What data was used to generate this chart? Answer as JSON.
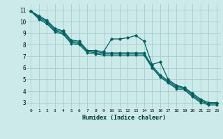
{
  "xlabel": "Humidex (Indice chaleur)",
  "bg_color": "#cceaea",
  "grid_color": "#aacccc",
  "line_color": "#006060",
  "xlim": [
    -0.5,
    23.5
  ],
  "ylim": [
    2.5,
    11.5
  ],
  "xticks": [
    0,
    1,
    2,
    3,
    4,
    5,
    6,
    7,
    8,
    9,
    10,
    11,
    12,
    13,
    14,
    15,
    16,
    17,
    18,
    19,
    20,
    21,
    22,
    23
  ],
  "yticks": [
    3,
    4,
    5,
    6,
    7,
    8,
    9,
    10,
    11
  ],
  "series_data": [
    [
      10.9,
      10.5,
      10.1,
      9.4,
      9.2,
      8.4,
      8.3,
      7.5,
      7.5,
      7.4,
      8.5,
      8.5,
      8.6,
      8.8,
      8.3,
      6.3,
      6.5,
      5.0,
      4.5,
      4.3,
      3.8,
      3.3,
      3.0,
      3.0
    ],
    [
      10.9,
      10.4,
      10.0,
      9.3,
      9.1,
      8.3,
      8.2,
      7.5,
      7.4,
      7.3,
      7.3,
      7.3,
      7.3,
      7.3,
      7.3,
      6.2,
      5.4,
      4.9,
      4.4,
      4.3,
      3.7,
      3.2,
      2.9,
      2.9
    ],
    [
      10.9,
      10.3,
      9.9,
      9.2,
      9.0,
      8.2,
      8.1,
      7.4,
      7.3,
      7.2,
      7.2,
      7.2,
      7.2,
      7.2,
      7.2,
      6.1,
      5.3,
      4.8,
      4.3,
      4.2,
      3.6,
      3.1,
      2.9,
      2.9
    ],
    [
      10.9,
      10.2,
      9.8,
      9.1,
      8.9,
      8.1,
      8.0,
      7.3,
      7.2,
      7.1,
      7.1,
      7.1,
      7.1,
      7.1,
      7.1,
      6.0,
      5.2,
      4.7,
      4.2,
      4.1,
      3.5,
      3.0,
      2.8,
      2.8
    ]
  ]
}
